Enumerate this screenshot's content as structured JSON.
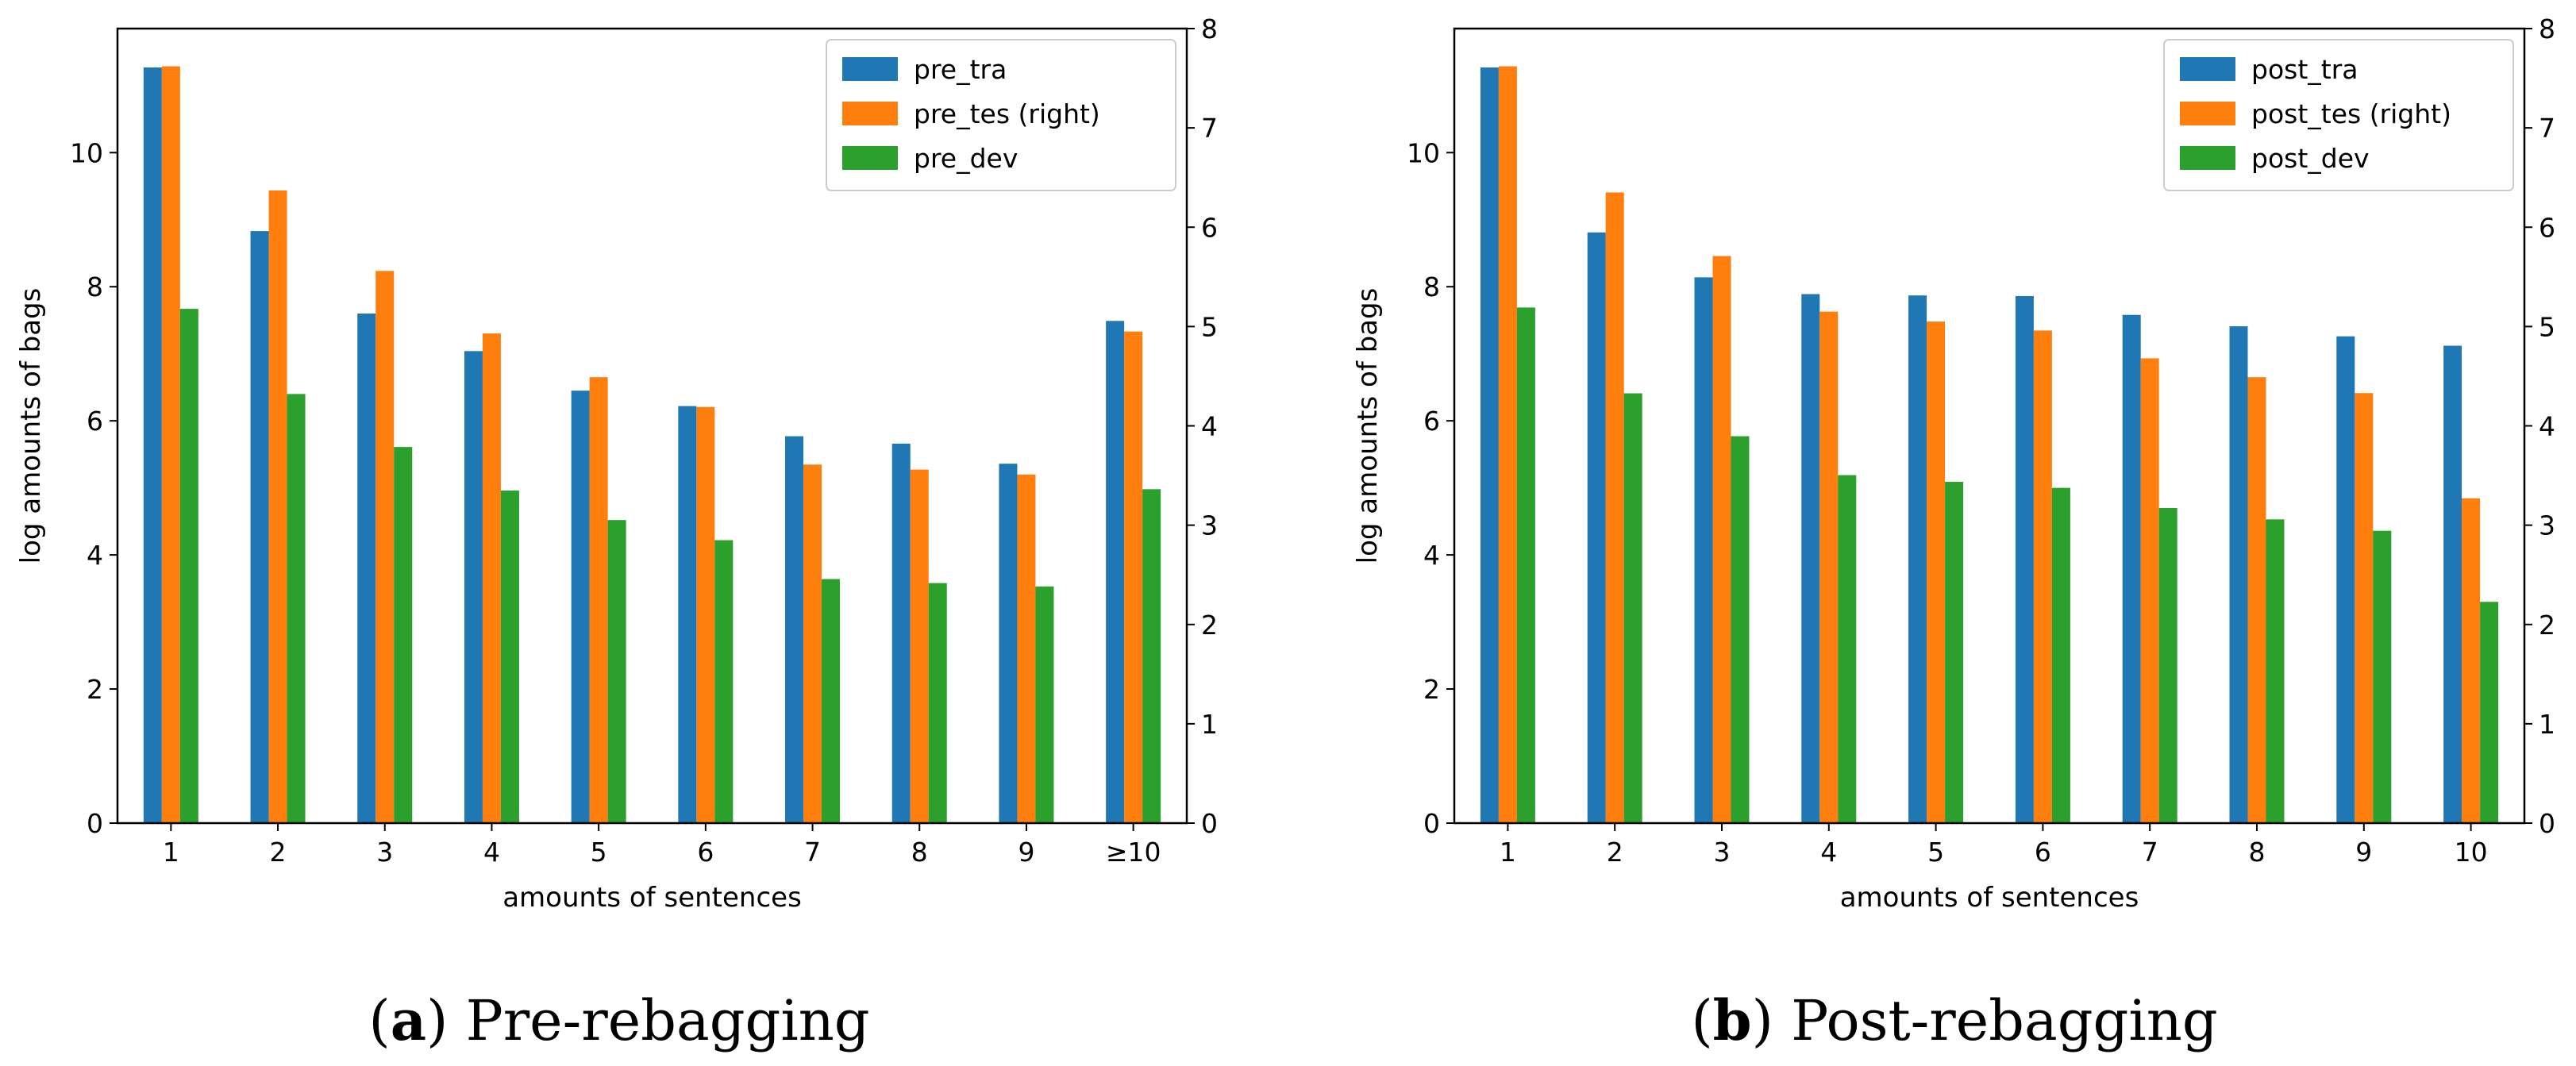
{
  "colors": {
    "tra": "#1f77b4",
    "tes": "#ff7f0e",
    "dev": "#2ca02c"
  },
  "chart_data": [
    {
      "type": "bar",
      "caption_letter": "a",
      "caption_text": "Pre-rebagging",
      "xlabel": "amounts of sentences",
      "ylabel": "log amounts of bags",
      "categories": [
        "1",
        "2",
        "3",
        "4",
        "5",
        "6",
        "7",
        "8",
        "9",
        "≥10"
      ],
      "ylim_left": [
        0,
        11.85
      ],
      "yticks_left": [
        0,
        2,
        4,
        6,
        8,
        10
      ],
      "ylim_right": [
        0,
        8.0
      ],
      "yticks_right": [
        0,
        1,
        2,
        3,
        4,
        5,
        6,
        7,
        8
      ],
      "series": [
        {
          "name": "pre_tra",
          "axis": "left",
          "color_key": "tra",
          "values": [
            11.27,
            8.83,
            7.6,
            7.04,
            6.45,
            6.22,
            5.77,
            5.66,
            5.36,
            7.49
          ]
        },
        {
          "name": "pre_tes (right)",
          "axis": "right",
          "color_key": "tes",
          "values": [
            7.62,
            6.37,
            5.56,
            4.93,
            4.49,
            4.19,
            3.61,
            3.56,
            3.51,
            4.95
          ]
        },
        {
          "name": "pre_dev",
          "axis": "left",
          "color_key": "dev",
          "values": [
            7.67,
            6.4,
            5.61,
            4.96,
            4.52,
            4.22,
            3.64,
            3.58,
            3.53,
            4.98
          ]
        }
      ],
      "legend_position": "upper right"
    },
    {
      "type": "bar",
      "caption_letter": "b",
      "caption_text": "Post-rebagging",
      "xlabel": "amounts of sentences",
      "ylabel": "log amounts of bags",
      "categories": [
        "1",
        "2",
        "3",
        "4",
        "5",
        "6",
        "7",
        "8",
        "9",
        "10"
      ],
      "ylim_left": [
        0,
        11.85
      ],
      "yticks_left": [
        0,
        2,
        4,
        6,
        8,
        10
      ],
      "ylim_right": [
        0,
        8.0
      ],
      "yticks_right": [
        0,
        1,
        2,
        3,
        4,
        5,
        6,
        7,
        8
      ],
      "series": [
        {
          "name": "post_tra",
          "axis": "left",
          "color_key": "tra",
          "values": [
            11.27,
            8.81,
            8.14,
            7.89,
            7.87,
            7.86,
            7.58,
            7.41,
            7.26,
            7.12
          ]
        },
        {
          "name": "post_tes (right)",
          "axis": "right",
          "color_key": "tes",
          "values": [
            7.62,
            6.35,
            5.71,
            5.15,
            5.05,
            4.96,
            4.68,
            4.49,
            4.33,
            3.27
          ]
        },
        {
          "name": "post_dev",
          "axis": "left",
          "color_key": "dev",
          "values": [
            7.69,
            6.41,
            5.77,
            5.19,
            5.09,
            5.0,
            4.7,
            4.53,
            4.36,
            3.3
          ]
        }
      ],
      "legend_position": "upper right"
    }
  ]
}
